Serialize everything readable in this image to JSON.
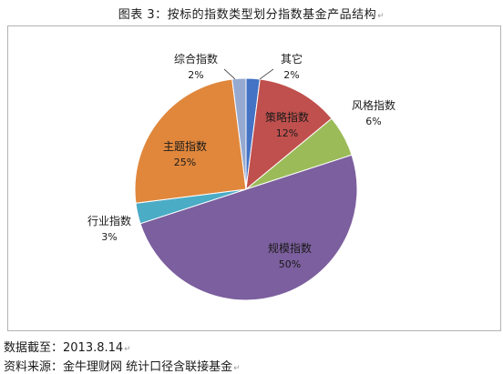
{
  "figure": {
    "title": "图表 3：按标的指数类型划分指数基金产品结构",
    "pilcrow": "↵"
  },
  "chart_data": {
    "type": "pie",
    "title": "图表 3：按标的指数类型划分指数基金产品结构",
    "start_angle_deg": 0,
    "direction": "clockwise",
    "slices": [
      {
        "name": "其它",
        "value": 2,
        "label": "2%",
        "color": "#4472c4"
      },
      {
        "name": "策略指数",
        "value": 12,
        "label": "12%",
        "color": "#c0504d"
      },
      {
        "name": "风格指数",
        "value": 6,
        "label": "6%",
        "color": "#9bbb59"
      },
      {
        "name": "规模指数",
        "value": 50,
        "label": "50%",
        "color": "#7c5f9e"
      },
      {
        "name": "行业指数",
        "value": 3,
        "label": "3%",
        "color": "#4bacc6"
      },
      {
        "name": "主题指数",
        "value": 25,
        "label": "25%",
        "color": "#e0873c"
      },
      {
        "name": "综合指数",
        "value": 2,
        "label": "2%",
        "color": "#96a9d0"
      }
    ],
    "legend": "none"
  },
  "footer": {
    "date_line": "数据截至：2013.8.14",
    "source_line": "资料来源：金牛理财网    统计口径含联接基金"
  }
}
